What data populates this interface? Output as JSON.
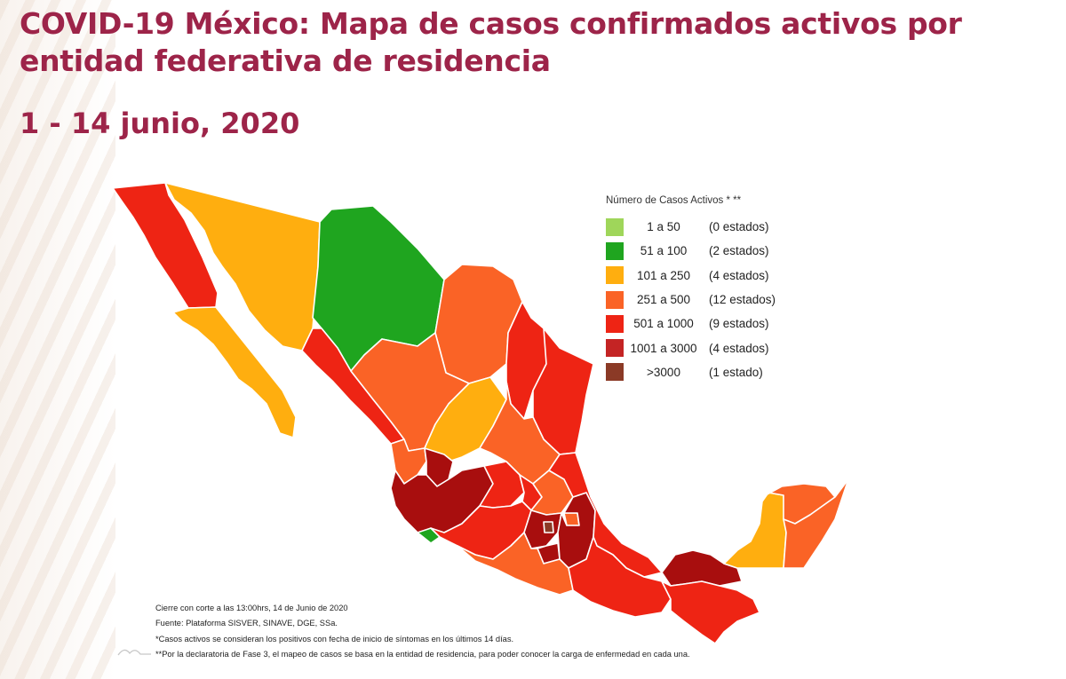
{
  "header": {
    "title": "COVID-19 México: Mapa de casos confirmados activos por entidad federativa de residencia",
    "date": "1 - 14 junio, 2020"
  },
  "legend": {
    "title": "Número de Casos Activos * **",
    "items": [
      {
        "range": "1 a 50",
        "count": "(0 estados)",
        "color": "#9fd65a"
      },
      {
        "range": "51 a 100",
        "count": "(2 estados)",
        "color": "#1fa51f"
      },
      {
        "range": "101 a 250",
        "count": "(4 estados)",
        "color": "#ffae0f"
      },
      {
        "range": "251 a 500",
        "count": "(12 estados)",
        "color": "#fa6326"
      },
      {
        "range": "501 a 1000",
        "count": "(9 estados)",
        "color": "#ee2414"
      },
      {
        "range": "1001 a 3000",
        "count": "(4 estados)",
        "color": "#c42424"
      },
      {
        "range": ">3000",
        "count": "(1 estado)",
        "color": "#8b3a26"
      }
    ]
  },
  "map_colors": {
    "green": "#1fa51f",
    "amber": "#ffae0f",
    "orange": "#fa6326",
    "red": "#ee2414",
    "darkred": "#a80e0e",
    "darkest": "#8b3a26"
  },
  "notes": [
    "Cierre con corte a las 13:00hrs, 14 de Junio de 2020",
    "Fuente: Plataforma SISVER, SINAVE, DGE, SSa.",
    "*Casos activos se consideran los positivos con fecha de inicio de síntomas en los últimos 14 días.",
    "**Por la declaratoria de Fase 3, el mapeo de casos se basa en la entidad de residencia, para poder conocer la carga de enfermedad en cada una."
  ]
}
